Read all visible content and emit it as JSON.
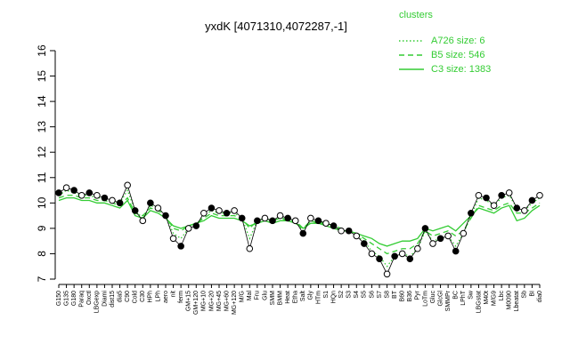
{
  "chart_data": {
    "type": "line",
    "title": "yxdK [4071310,4072287,-1]",
    "legend_title": "clusters",
    "categories": [
      "G150",
      "G135",
      "G180",
      "Paraq",
      "Oxctl",
      "LBGexp",
      "Diami",
      "dist15",
      "dia5",
      "C90",
      "Cold",
      "C30",
      "HPh",
      "LPh",
      "aero",
      "nit",
      "ferm",
      "GM+15",
      "GM+120",
      "MG+10",
      "MG+20",
      "MG+45",
      "MG+60",
      "MG+120",
      "M/G",
      "Mal",
      "Fru",
      "Glu",
      "SMM",
      "BMM",
      "Heat",
      "Etha",
      "Salt",
      "Gly",
      "HTm",
      "S1",
      "HQn",
      "S2",
      "S3",
      "S4",
      "S5",
      "S6",
      "S7",
      "S8",
      "BT",
      "B60",
      "B36",
      "Pyr",
      "LoTm",
      "Gluc",
      "GlcGl",
      "SMMPr",
      "BC",
      "LPhT",
      "Sw",
      "LBGstat",
      "M40t",
      "M/G9",
      "Lbc",
      "M0090",
      "Lbeatat",
      "Sb",
      "BI",
      "dia0"
    ],
    "values": [
      10.4,
      10.6,
      10.5,
      10.3,
      10.4,
      10.3,
      10.2,
      10.1,
      10.0,
      10.7,
      9.7,
      9.3,
      10.0,
      9.8,
      9.5,
      8.6,
      8.3,
      9.0,
      9.1,
      9.6,
      9.8,
      9.7,
      9.6,
      9.7,
      9.4,
      8.2,
      9.3,
      9.4,
      9.3,
      9.5,
      9.4,
      9.3,
      8.8,
      9.4,
      9.3,
      9.2,
      9.1,
      8.9,
      8.9,
      8.7,
      8.4,
      8.0,
      7.8,
      7.2,
      7.9,
      8.0,
      7.8,
      8.2,
      9.0,
      8.4,
      8.6,
      8.7,
      8.1,
      8.8,
      9.6,
      10.3,
      10.2,
      9.9,
      10.3,
      10.4,
      9.8,
      9.7,
      10.1,
      10.3
    ],
    "point_color": "#000000",
    "series": [
      {
        "name": "A726 size: 6",
        "style": "dotted",
        "color": "#33cc33",
        "values": [
          10.3,
          10.5,
          10.4,
          10.3,
          10.3,
          10.2,
          10.2,
          10.1,
          10.0,
          10.5,
          9.7,
          9.4,
          9.9,
          9.8,
          9.5,
          8.8,
          8.6,
          9.0,
          9.1,
          9.5,
          9.7,
          9.6,
          9.6,
          9.6,
          9.4,
          8.6,
          9.3,
          9.4,
          9.3,
          9.4,
          9.4,
          9.3,
          8.9,
          9.3,
          9.3,
          9.2,
          9.1,
          8.9,
          8.9,
          8.7,
          8.5,
          8.1,
          7.9,
          7.5,
          7.9,
          8.0,
          7.9,
          8.2,
          8.9,
          8.5,
          8.6,
          8.7,
          8.3,
          8.8,
          9.5,
          10.2,
          10.1,
          9.9,
          10.2,
          10.3,
          9.8,
          9.7,
          10.0,
          10.2
        ]
      },
      {
        "name": "B5 size: 546",
        "style": "dashed",
        "color": "#33cc33",
        "values": [
          10.2,
          10.3,
          10.3,
          10.2,
          10.2,
          10.1,
          10.1,
          10.0,
          9.9,
          10.2,
          9.6,
          9.5,
          9.8,
          9.7,
          9.5,
          9.0,
          8.9,
          9.1,
          9.2,
          9.4,
          9.6,
          9.5,
          9.5,
          9.5,
          9.4,
          9.0,
          9.3,
          9.4,
          9.3,
          9.4,
          9.3,
          9.3,
          9.0,
          9.3,
          9.2,
          9.2,
          9.1,
          9.0,
          8.9,
          8.8,
          8.6,
          8.4,
          8.2,
          8.0,
          8.1,
          8.2,
          8.2,
          8.4,
          8.9,
          8.7,
          8.8,
          8.9,
          8.7,
          8.9,
          9.4,
          9.9,
          9.8,
          9.7,
          9.9,
          10.0,
          9.6,
          9.6,
          9.8,
          10.0
        ]
      },
      {
        "name": "C3 size: 1383",
        "style": "solid",
        "color": "#33cc33",
        "values": [
          10.1,
          10.2,
          10.2,
          10.1,
          10.1,
          10.0,
          10.0,
          9.9,
          9.8,
          10.1,
          9.5,
          9.4,
          9.7,
          9.6,
          9.4,
          9.1,
          9.0,
          9.1,
          9.2,
          9.3,
          9.5,
          9.4,
          9.4,
          9.4,
          9.3,
          9.1,
          9.2,
          9.3,
          9.2,
          9.3,
          9.3,
          9.2,
          9.0,
          9.2,
          9.2,
          9.1,
          9.0,
          8.9,
          8.9,
          8.8,
          8.7,
          8.6,
          8.4,
          8.3,
          8.4,
          8.5,
          8.5,
          8.6,
          9.0,
          8.9,
          9.0,
          9.1,
          8.9,
          9.2,
          9.5,
          9.8,
          9.7,
          9.6,
          9.8,
          9.9,
          9.3,
          9.4,
          9.7,
          9.9
        ]
      }
    ],
    "ylim": [
      7,
      16
    ],
    "yticks": [
      7,
      8,
      9,
      10,
      11,
      12,
      13,
      14,
      15,
      16
    ]
  }
}
